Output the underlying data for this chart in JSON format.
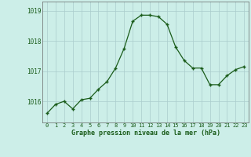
{
  "x": [
    0,
    1,
    2,
    3,
    4,
    5,
    6,
    7,
    8,
    9,
    10,
    11,
    12,
    13,
    14,
    15,
    16,
    17,
    18,
    19,
    20,
    21,
    22,
    23
  ],
  "y": [
    1015.6,
    1015.9,
    1016.0,
    1015.75,
    1016.05,
    1016.1,
    1016.4,
    1016.65,
    1017.1,
    1017.75,
    1018.65,
    1018.85,
    1018.85,
    1018.8,
    1018.55,
    1017.8,
    1017.35,
    1017.1,
    1017.1,
    1016.55,
    1016.55,
    1016.85,
    1017.05,
    1017.15
  ],
  "ylim": [
    1015.3,
    1019.3
  ],
  "yticks": [
    1016,
    1017,
    1018,
    1019
  ],
  "xlabel": "Graphe pression niveau de la mer (hPa)",
  "line_color": "#1a5c1a",
  "marker_color": "#1a5c1a",
  "bg_color": "#cceee8",
  "grid_color": "#aacccc",
  "figsize": [
    3.2,
    2.0
  ],
  "dpi": 100
}
